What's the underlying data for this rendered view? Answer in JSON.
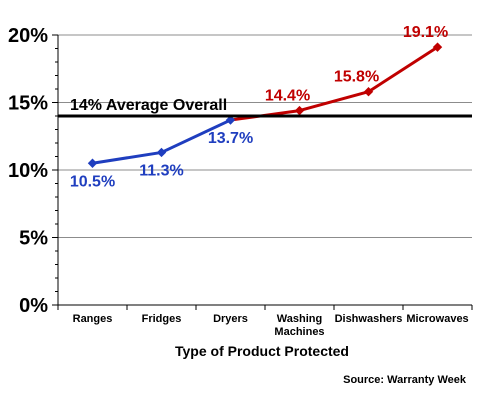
{
  "chart_data": {
    "type": "line",
    "categories": [
      "Ranges",
      "Fridges",
      "Dryers",
      "Washing Machines",
      "Dishwashers",
      "Microwaves"
    ],
    "category_lines": [
      [
        "Ranges"
      ],
      [
        "Fridges"
      ],
      [
        "Dryers"
      ],
      [
        "Washing",
        "Machines"
      ],
      [
        "Dishwashers"
      ],
      [
        "Microwaves"
      ]
    ],
    "values": [
      10.5,
      11.3,
      13.7,
      14.4,
      15.8,
      19.1
    ],
    "value_labels": [
      "10.5%",
      "11.3%",
      "13.7%",
      "14.4%",
      "15.8%",
      "19.1%"
    ],
    "colors": [
      "#1f3ebf",
      "#1f3ebf",
      "#1f3ebf",
      "#c00000",
      "#c00000",
      "#c00000"
    ],
    "below_average_color": "#1f3ebf",
    "above_average_color": "#c00000",
    "average": {
      "value": 14,
      "label": "14% Average Overall",
      "color": "#000000"
    },
    "xlabel": "Type of Product Protected",
    "ylabel": "",
    "ylim": [
      0,
      20
    ],
    "yticks": [
      "0%",
      "5%",
      "10%",
      "15%",
      "20%"
    ],
    "grid": true,
    "legend": "none",
    "source": "Source: Warranty Week"
  }
}
